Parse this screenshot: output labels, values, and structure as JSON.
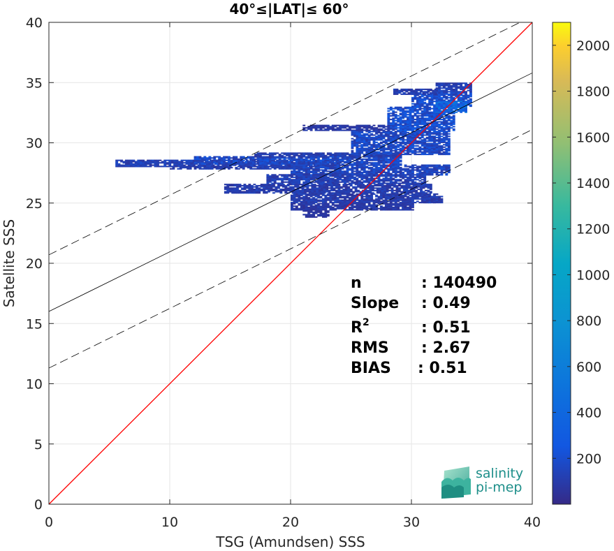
{
  "chart_data": {
    "type": "heatmap",
    "title": "40°≤|LAT|≤ 60°",
    "xlabel": "TSG (Amundsen) SSS",
    "ylabel": "Satellite SSS",
    "xlim": [
      0,
      40
    ],
    "ylim": [
      0,
      40
    ],
    "xticks": [
      "0",
      "10",
      "20",
      "30",
      "40"
    ],
    "yticks": [
      "0",
      "5",
      "10",
      "15",
      "20",
      "25",
      "30",
      "35",
      "40"
    ],
    "grid": true,
    "lines": [
      {
        "name": "1:1",
        "color": "#ff0000",
        "style": "solid",
        "points": [
          [
            0,
            0
          ],
          [
            40,
            40
          ]
        ]
      },
      {
        "name": "fit",
        "color": "#000000",
        "style": "solid",
        "points": [
          [
            0,
            16.0
          ],
          [
            40,
            35.8
          ]
        ]
      },
      {
        "name": "fit+",
        "color": "#000000",
        "style": "dashed",
        "points": [
          [
            0,
            20.7
          ],
          [
            40,
            40.5
          ]
        ]
      },
      {
        "name": "fit-",
        "color": "#000000",
        "style": "dashed",
        "points": [
          [
            0,
            11.3
          ],
          [
            40,
            31.1
          ]
        ]
      }
    ],
    "density_blocks": [
      {
        "x0": 5.5,
        "x1": 24,
        "y0": 28.0,
        "y1": 28.6,
        "c": 0.06
      },
      {
        "x0": 12,
        "x1": 29,
        "y0": 28.2,
        "y1": 28.9,
        "c": 0.08
      },
      {
        "x0": 17,
        "x1": 29,
        "y0": 28.8,
        "y1": 29.2,
        "c": 0.05
      },
      {
        "x0": 10,
        "x1": 22,
        "y0": 27.8,
        "y1": 28.1,
        "c": 0.05
      },
      {
        "x0": 20,
        "x1": 33,
        "y0": 27.3,
        "y1": 28.2,
        "c": 0.07
      },
      {
        "x0": 18,
        "x1": 31,
        "y0": 26.6,
        "y1": 27.4,
        "c": 0.06
      },
      {
        "x0": 14.5,
        "x1": 31.5,
        "y0": 25.8,
        "y1": 26.6,
        "c": 0.05
      },
      {
        "x0": 20,
        "x1": 32,
        "y0": 25.0,
        "y1": 25.8,
        "c": 0.05
      },
      {
        "x0": 20,
        "x1": 30,
        "y0": 24.4,
        "y1": 25.0,
        "c": 0.04
      },
      {
        "x0": 21,
        "x1": 23,
        "y0": 23.8,
        "y1": 24.4,
        "c": 0.03
      },
      {
        "x0": 31,
        "x1": 32.5,
        "y0": 25.0,
        "y1": 25.6,
        "c": 0.05
      },
      {
        "x0": 25,
        "x1": 33,
        "y0": 29.0,
        "y1": 31.0,
        "c": 0.08
      },
      {
        "x0": 28,
        "x1": 33.5,
        "y0": 31.0,
        "y1": 33.0,
        "c": 0.1
      },
      {
        "x0": 30,
        "x1": 35,
        "y0": 33.0,
        "y1": 34.2,
        "c": 0.09
      },
      {
        "x0": 28.5,
        "x1": 32,
        "y0": 34.0,
        "y1": 34.5,
        "c": 0.05
      },
      {
        "x0": 32,
        "x1": 35,
        "y0": 34.2,
        "y1": 35.0,
        "c": 0.06
      },
      {
        "x0": 21,
        "x1": 28,
        "y0": 31.0,
        "y1": 31.5,
        "c": 0.04
      },
      {
        "x0": 32,
        "x1": 34.5,
        "y0": 32.5,
        "y1": 33.5,
        "c": 0.18
      }
    ],
    "colorbar": {
      "clim": [
        0,
        2100
      ],
      "ticks": [
        "200",
        "400",
        "600",
        "800",
        "1000",
        "1200",
        "1400",
        "1600",
        "1800",
        "2000"
      ],
      "colormap": "parula"
    },
    "annotations": {
      "labels": [
        "n",
        "Slope",
        "R",
        "RMS",
        "BIAS"
      ],
      "r_superscript": "2",
      "values": [
        ": 140490",
        ": 0.49",
        ": 0.51",
        ": 2.67",
        ": 0.51"
      ]
    }
  },
  "logo": {
    "line1": "salinity",
    "line2": "pi-mep"
  }
}
